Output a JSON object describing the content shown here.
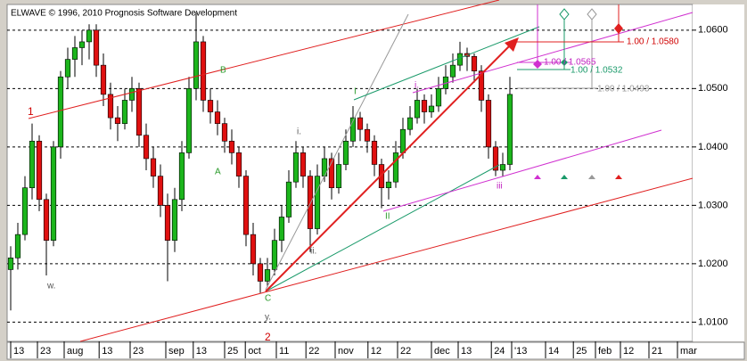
{
  "chart_data": {
    "type": "candlestick",
    "title": "ELWAVE © 1996, 2010 Prognosis Software Development",
    "up_color": "#1cb51c",
    "down_color": "#e01010",
    "ohlc": [
      [
        1.019,
        1.023,
        1.012,
        1.021
      ],
      [
        1.021,
        1.027,
        1.019,
        1.025
      ],
      [
        1.025,
        1.035,
        1.024,
        1.033
      ],
      [
        1.033,
        1.044,
        1.031,
        1.041
      ],
      [
        1.041,
        1.042,
        1.029,
        1.031
      ],
      [
        1.031,
        1.032,
        1.018,
        1.024
      ],
      [
        1.024,
        1.041,
        1.023,
        1.04
      ],
      [
        1.04,
        1.053,
        1.038,
        1.052
      ],
      [
        1.052,
        1.057,
        1.05,
        1.055
      ],
      [
        1.055,
        1.059,
        1.052,
        1.057
      ],
      [
        1.057,
        1.06,
        1.054,
        1.058
      ],
      [
        1.058,
        1.061,
        1.055,
        1.06
      ],
      [
        1.06,
        1.061,
        1.052,
        1.054
      ],
      [
        1.054,
        1.056,
        1.047,
        1.049
      ],
      [
        1.049,
        1.051,
        1.043,
        1.045
      ],
      [
        1.045,
        1.047,
        1.041,
        1.044
      ],
      [
        1.044,
        1.05,
        1.043,
        1.048
      ],
      [
        1.048,
        1.052,
        1.046,
        1.05
      ],
      [
        1.05,
        1.051,
        1.04,
        1.042
      ],
      [
        1.042,
        1.044,
        1.036,
        1.038
      ],
      [
        1.038,
        1.04,
        1.033,
        1.035
      ],
      [
        1.035,
        1.037,
        1.028,
        1.03
      ],
      [
        1.03,
        1.032,
        1.017,
        1.024
      ],
      [
        1.024,
        1.033,
        1.022,
        1.031
      ],
      [
        1.031,
        1.041,
        1.029,
        1.039
      ],
      [
        1.039,
        1.052,
        1.038,
        1.05
      ],
      [
        1.05,
        1.063,
        1.048,
        1.058
      ],
      [
        1.058,
        1.059,
        1.046,
        1.048
      ],
      [
        1.048,
        1.05,
        1.044,
        1.046
      ],
      [
        1.046,
        1.048,
        1.042,
        1.044
      ],
      [
        1.044,
        1.045,
        1.039,
        1.041
      ],
      [
        1.041,
        1.043,
        1.037,
        1.039
      ],
      [
        1.039,
        1.04,
        1.033,
        1.035
      ],
      [
        1.035,
        1.036,
        1.023,
        1.025
      ],
      [
        1.025,
        1.027,
        1.018,
        1.02
      ],
      [
        1.02,
        1.021,
        1.015,
        1.017
      ],
      [
        1.017,
        1.021,
        1.016,
        1.019
      ],
      [
        1.019,
        1.026,
        1.018,
        1.024
      ],
      [
        1.024,
        1.03,
        1.022,
        1.028
      ],
      [
        1.028,
        1.036,
        1.027,
        1.034
      ],
      [
        1.034,
        1.041,
        1.033,
        1.039
      ],
      [
        1.039,
        1.04,
        1.033,
        1.035
      ],
      [
        1.035,
        1.036,
        1.022,
        1.026
      ],
      [
        1.026,
        1.037,
        1.025,
        1.035
      ],
      [
        1.035,
        1.04,
        1.034,
        1.038
      ],
      [
        1.038,
        1.039,
        1.031,
        1.033
      ],
      [
        1.033,
        1.039,
        1.032,
        1.037
      ],
      [
        1.037,
        1.043,
        1.036,
        1.041
      ],
      [
        1.041,
        1.047,
        1.04,
        1.045
      ],
      [
        1.045,
        1.046,
        1.041,
        1.043
      ],
      [
        1.043,
        1.044,
        1.039,
        1.041
      ],
      [
        1.041,
        1.042,
        1.035,
        1.037
      ],
      [
        1.037,
        1.038,
        1.0295,
        1.033
      ],
      [
        1.033,
        1.036,
        1.031,
        1.034
      ],
      [
        1.034,
        1.041,
        1.033,
        1.039
      ],
      [
        1.039,
        1.045,
        1.038,
        1.043
      ],
      [
        1.043,
        1.047,
        1.042,
        1.045
      ],
      [
        1.045,
        1.05,
        1.044,
        1.048
      ],
      [
        1.048,
        1.049,
        1.044,
        1.046
      ],
      [
        1.046,
        1.049,
        1.045,
        1.047
      ],
      [
        1.047,
        1.052,
        1.046,
        1.05
      ],
      [
        1.05,
        1.054,
        1.049,
        1.052
      ],
      [
        1.052,
        1.056,
        1.051,
        1.054
      ],
      [
        1.054,
        1.058,
        1.053,
        1.056
      ],
      [
        1.056,
        1.057,
        1.053,
        1.0555
      ],
      [
        1.0555,
        1.056,
        1.051,
        1.053
      ],
      [
        1.053,
        1.054,
        1.046,
        1.048
      ],
      [
        1.048,
        1.049,
        1.038,
        1.04
      ],
      [
        1.04,
        1.041,
        1.035,
        1.036
      ],
      [
        1.036,
        1.039,
        1.035,
        1.037
      ],
      [
        1.037,
        1.052,
        1.036,
        1.049
      ]
    ],
    "xlim": [
      -0.5,
      95.625
    ],
    "xticks": [
      {
        "value": 0,
        "label": "13"
      },
      {
        "value": 3.75,
        "label": "23"
      },
      {
        "value": 7.5,
        "label": "aug"
      },
      {
        "value": 12.4,
        "label": "13"
      },
      {
        "value": 16.75,
        "label": "23"
      },
      {
        "value": 21.75,
        "label": "sep"
      },
      {
        "value": 25.6,
        "label": "13"
      },
      {
        "value": 30,
        "label": "25"
      },
      {
        "value": 32.9,
        "label": "oct"
      },
      {
        "value": 37.25,
        "label": "11"
      },
      {
        "value": 41.4,
        "label": "22"
      },
      {
        "value": 45.5,
        "label": "nov"
      },
      {
        "value": 50.1,
        "label": "12"
      },
      {
        "value": 54.25,
        "label": "22"
      },
      {
        "value": 59,
        "label": "dec"
      },
      {
        "value": 62.75,
        "label": "13"
      },
      {
        "value": 67.4,
        "label": "24"
      },
      {
        "value": 70.25,
        "label": "'13"
      },
      {
        "value": 75,
        "label": "14"
      },
      {
        "value": 78.9,
        "label": "25"
      },
      {
        "value": 82,
        "label": "feb"
      },
      {
        "value": 85.5,
        "label": "12"
      },
      {
        "value": 89.5,
        "label": "21"
      },
      {
        "value": 93.5,
        "label": "mar"
      }
    ],
    "ylim": [
      1.0067,
      1.0644
    ],
    "yticks": [
      {
        "value": 1.01,
        "label": "1.0100"
      },
      {
        "value": 1.02,
        "label": "1.0200"
      },
      {
        "value": 1.03,
        "label": "1.0300"
      },
      {
        "value": 1.04,
        "label": "1.0400"
      },
      {
        "value": 1.05,
        "label": "1.0500"
      },
      {
        "value": 1.06,
        "label": "1.0600"
      }
    ],
    "grid": true,
    "annotations": [
      "1",
      "w.",
      "B",
      "A",
      "i.",
      "ii.",
      "C",
      "y.",
      "2",
      "I",
      "II",
      "i.",
      "iii",
      "1.00 / 1.0580",
      "1.00 / 1.0565",
      "1.00 / 1.0532",
      "1.00 / 1.0493"
    ]
  }
}
